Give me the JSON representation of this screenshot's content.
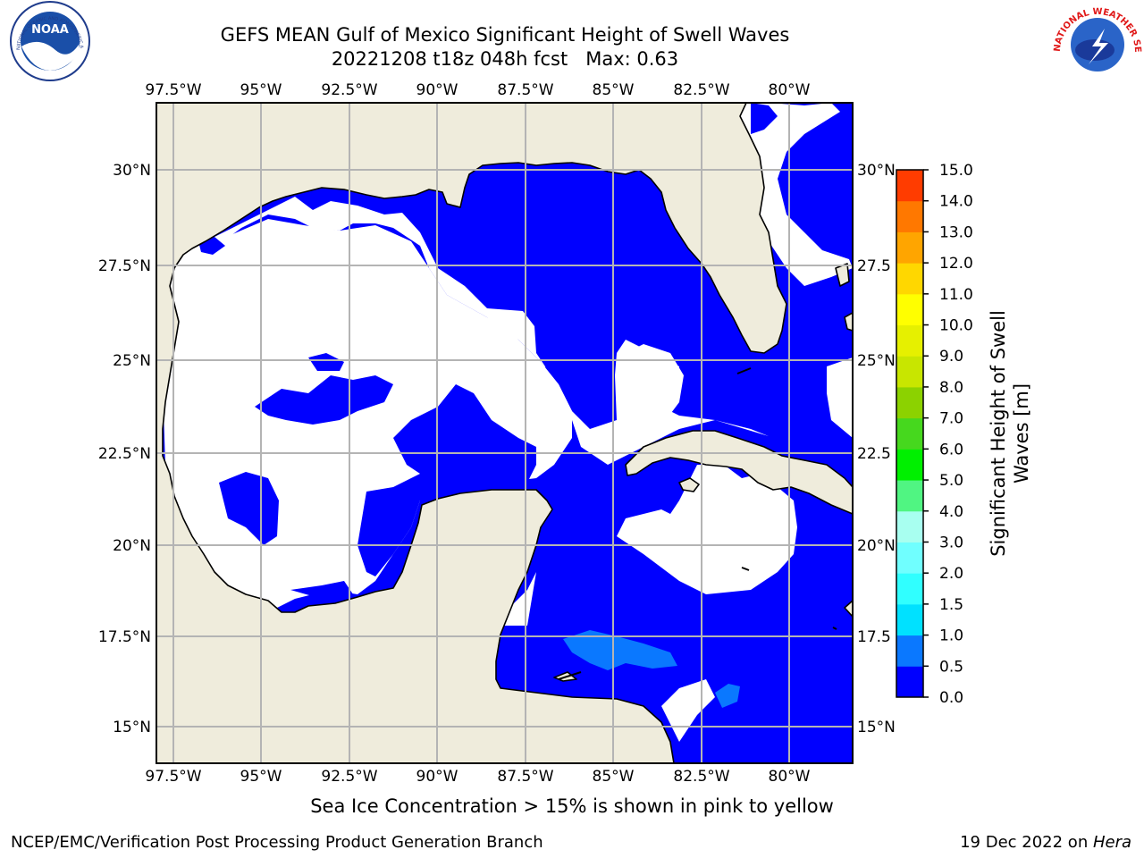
{
  "title": {
    "line1": "GEFS MEAN Gulf of Mexico Significant Height of Swell Waves",
    "line2": "20221208 t18z 048h fcst   Max: 0.63"
  },
  "map": {
    "lon_ticks": [
      "97.5°W",
      "95°W",
      "92.5°W",
      "90°W",
      "87.5°W",
      "85°W",
      "82.5°W",
      "80°W"
    ],
    "lat_ticks_left": [
      "30°N",
      "27.5°N",
      "25°N",
      "22.5°N",
      "20°N",
      "17.5°N",
      "15°N"
    ],
    "lat_ticks_right": [
      "30°N",
      "27.5",
      "25°N",
      "22.5",
      "20°N",
      "17.5",
      "15°N"
    ],
    "colors": {
      "land": "#efecdc",
      "ocean_zero": "#0000ff",
      "ocean_bin_05": "#0a64ff",
      "grid": "#b4b4b4",
      "no_data": "#ffffff"
    }
  },
  "colorbar": {
    "label_line1": "Significant Height of Swell",
    "label_line2": "Waves [m]",
    "levels": [
      "0.0",
      "0.5",
      "1.0",
      "1.5",
      "2.0",
      "3.0",
      "4.0",
      "5.0",
      "6.0",
      "7.0",
      "8.0",
      "9.0",
      "10.0",
      "11.0",
      "12.0",
      "13.0",
      "14.0",
      "15.0"
    ],
    "colors": [
      "#0000ff",
      "#0a78ff",
      "#00e1ff",
      "#30ffff",
      "#70ffff",
      "#a8fff0",
      "#50f582",
      "#00f000",
      "#46d81e",
      "#8cd200",
      "#c8e600",
      "#e6f000",
      "#ffff00",
      "#ffd700",
      "#ffa500",
      "#ff7800",
      "#ff3c00",
      "#ff0000"
    ]
  },
  "logos": {
    "noaa_text": "NOAA",
    "noaa_ring_text": "NATIONAL OCEANIC AND ATMOSPHERIC ADMINISTRATION · U.S. DEPARTMENT OF COMMERCE",
    "nws_ring_text": "NATIONAL WEATHER SERVICE"
  },
  "footnote": "Sea Ice Concentration > 15% is shown in pink to yellow",
  "credit": "NCEP/EMC/Verification Post Processing Product Generation Branch",
  "date": {
    "prefix": "19 Dec 2022 on ",
    "machine": "Hera"
  }
}
